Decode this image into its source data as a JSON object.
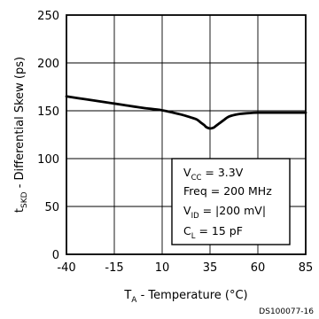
{
  "chart_data": {
    "type": "line",
    "xlabel": {
      "main": "T",
      "sub": "A",
      "rest": " - Temperature (°C)"
    },
    "ylabel": {
      "main": "t",
      "sub": "SKD",
      "rest": " - Differential Skew (ps)"
    },
    "x_ticks": [
      "-40",
      "-15",
      "10",
      "35",
      "60",
      "85"
    ],
    "y_ticks": [
      "0",
      "50",
      "100",
      "150",
      "200",
      "250"
    ],
    "xlim": [
      -40,
      85
    ],
    "ylim": [
      0,
      250
    ],
    "grid": true,
    "series": [
      {
        "x": [
          -40,
          -30,
          -20,
          -10,
          0,
          10,
          20,
          25,
          28,
          30,
          32,
          33,
          35,
          37,
          38,
          40,
          42,
          45,
          50,
          55,
          60,
          70,
          85
        ],
        "y": [
          165,
          162,
          159,
          156,
          153,
          150.5,
          146,
          143,
          141,
          138,
          135,
          133,
          131.5,
          132.5,
          134,
          137,
          140,
          144,
          146.5,
          147.5,
          148,
          148,
          148
        ]
      }
    ],
    "annotations": [
      {
        "main": "V",
        "sub": "CC",
        "rest": " = 3.3V"
      },
      {
        "main": "Freq = 200 MHz",
        "sub": "",
        "rest": ""
      },
      {
        "main": "V",
        "sub": "ID",
        "rest": " = |200 mV|"
      },
      {
        "main": "C",
        "sub": "L",
        "rest": " = 15 pF"
      }
    ]
  },
  "figure_id": "DS100077-16"
}
